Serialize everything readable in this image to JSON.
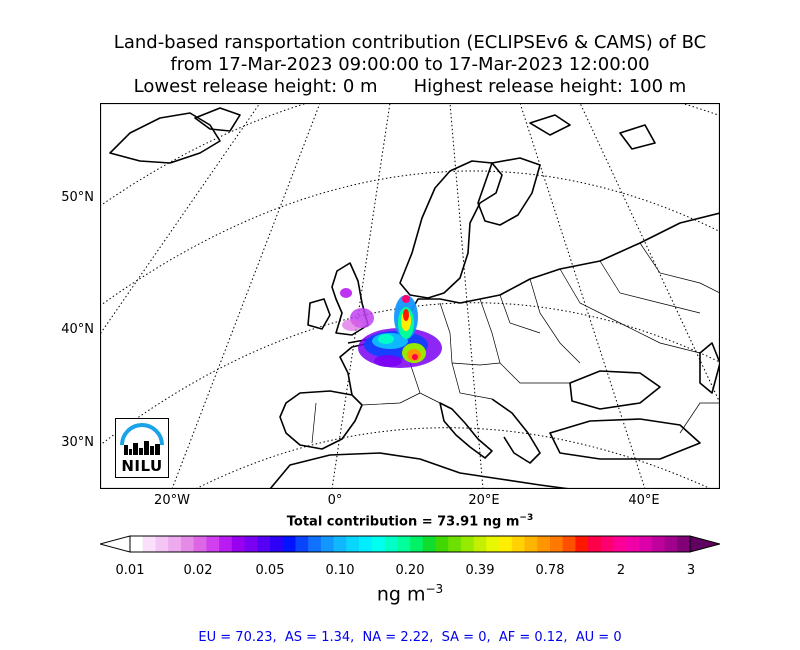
{
  "title": {
    "line1": "Land-based ransportation contribution (ECLIPSEv6 & CAMS) of BC",
    "line2": "from 17-Mar-2023 09:00:00 to 17-Mar-2023 12:00:00",
    "lowest_release": "Lowest release height: 0 m",
    "highest_release": "Highest release height: 100 m"
  },
  "map": {
    "lat_labels": [
      "50°N",
      "40°N",
      "30°N"
    ],
    "lon_labels": [
      "20°W",
      "0°",
      "20°E",
      "40°E"
    ],
    "logo_text": "NILU"
  },
  "total_contribution": {
    "prefix": "Total contribution = 73.91 ng m",
    "exponent": "−3"
  },
  "colorbar": {
    "tick_labels": [
      "0.01",
      "0.02",
      "0.05",
      "0.10",
      "0.20",
      "0.39",
      "0.78",
      "2",
      "3"
    ],
    "unit_base": "ng m",
    "unit_exponent": "−3",
    "colors": [
      "#ffffff",
      "#fbe0fb",
      "#f4c6f4",
      "#eeaaee",
      "#e68ae8",
      "#dd66e6",
      "#d040ee",
      "#b81cf0",
      "#9900f0",
      "#7a00f2",
      "#5600f5",
      "#2e00f8",
      "#0014ff",
      "#0a44ff",
      "#1070ff",
      "#1496ff",
      "#10b8ff",
      "#08d6ff",
      "#00eeff",
      "#00ffee",
      "#00ffc8",
      "#00ff9a",
      "#00f066",
      "#10dd30",
      "#40d800",
      "#6ee000",
      "#96ea00",
      "#c4f000",
      "#e8f600",
      "#ffee00",
      "#ffd200",
      "#ffb400",
      "#ff9600",
      "#ff7800",
      "#ff5000",
      "#ff1800",
      "#ff0048",
      "#ff0070",
      "#ff0096",
      "#f000a8",
      "#dc00a8",
      "#c0009c",
      "#a0008c",
      "#800078",
      "#600060"
    ]
  },
  "regions": "EU = 70.23,  AS = 1.34,  NA = 2.22,  SA = 0,  AF = 0.12,  AU = 0"
}
